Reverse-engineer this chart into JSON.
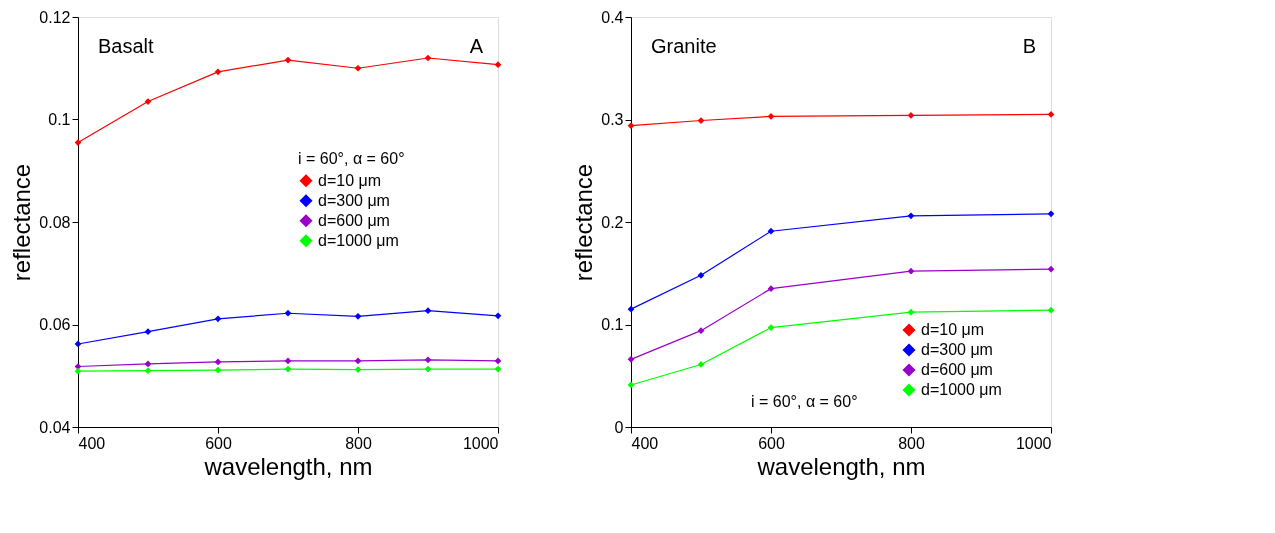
{
  "chart_data": [
    {
      "type": "line",
      "xlabel": "wavelength, nm",
      "ylabel": "reflectance",
      "legend_title": "i = 60°, α = 60°",
      "annotations": [
        "Basalt",
        "A"
      ],
      "x": [
        400,
        500,
        600,
        700,
        800,
        900,
        1000
      ],
      "series": [
        {
          "name": "d=10 μm",
          "color": "#ff0000",
          "values": [
            0.0955,
            0.1035,
            0.1093,
            0.1116,
            0.11,
            0.112,
            0.1107
          ]
        },
        {
          "name": "d=300 μm",
          "color": "#0000ff",
          "values": [
            0.0562,
            0.0586,
            0.0611,
            0.0622,
            0.0616,
            0.0627,
            0.0617
          ]
        },
        {
          "name": "d=600 μm",
          "color": "#9900cc",
          "values": [
            0.0518,
            0.0523,
            0.0527,
            0.0529,
            0.0529,
            0.0531,
            0.0529
          ]
        },
        {
          "name": "d=1000 μm",
          "color": "#00ff00",
          "values": [
            0.0509,
            0.051,
            0.0511,
            0.0513,
            0.0512,
            0.0513,
            0.0513
          ]
        }
      ],
      "xlim": [
        400,
        1000
      ],
      "xticks": [
        400,
        600,
        800,
        1000
      ],
      "ylim": [
        0.04,
        0.12
      ],
      "yticks": [
        0.04,
        0.06,
        0.08,
        0.1,
        0.12
      ],
      "grid": false,
      "legend": "right",
      "marker": "diamond",
      "line_style": "solid"
    },
    {
      "type": "line",
      "xlabel": "wavelength, nm",
      "ylabel": "reflectance",
      "annotations": [
        "Granite",
        "B",
        "i = 60°, α = 60°"
      ],
      "x": [
        400,
        500,
        600,
        800,
        1000
      ],
      "series": [
        {
          "name": "d=10 μm",
          "color": "#ff0000",
          "values": [
            0.294,
            0.299,
            0.303,
            0.304,
            0.305
          ]
        },
        {
          "name": "d=300 μm",
          "color": "#0000ff",
          "values": [
            0.115,
            0.148,
            0.191,
            0.206,
            0.208
          ]
        },
        {
          "name": "d=600 μm",
          "color": "#9900cc",
          "values": [
            0.066,
            0.094,
            0.135,
            0.152,
            0.154
          ]
        },
        {
          "name": "d=1000 μm",
          "color": "#00ff00",
          "values": [
            0.041,
            0.061,
            0.097,
            0.112,
            0.114
          ]
        }
      ],
      "xlim": [
        400,
        1000
      ],
      "xticks": [
        400,
        600,
        800,
        1000
      ],
      "ylim": [
        0,
        0.4
      ],
      "yticks": [
        0,
        0.1,
        0.2,
        0.3,
        0.4
      ],
      "grid": false,
      "legend": "bottom right",
      "marker": "diamond",
      "line_style": "solid"
    }
  ]
}
